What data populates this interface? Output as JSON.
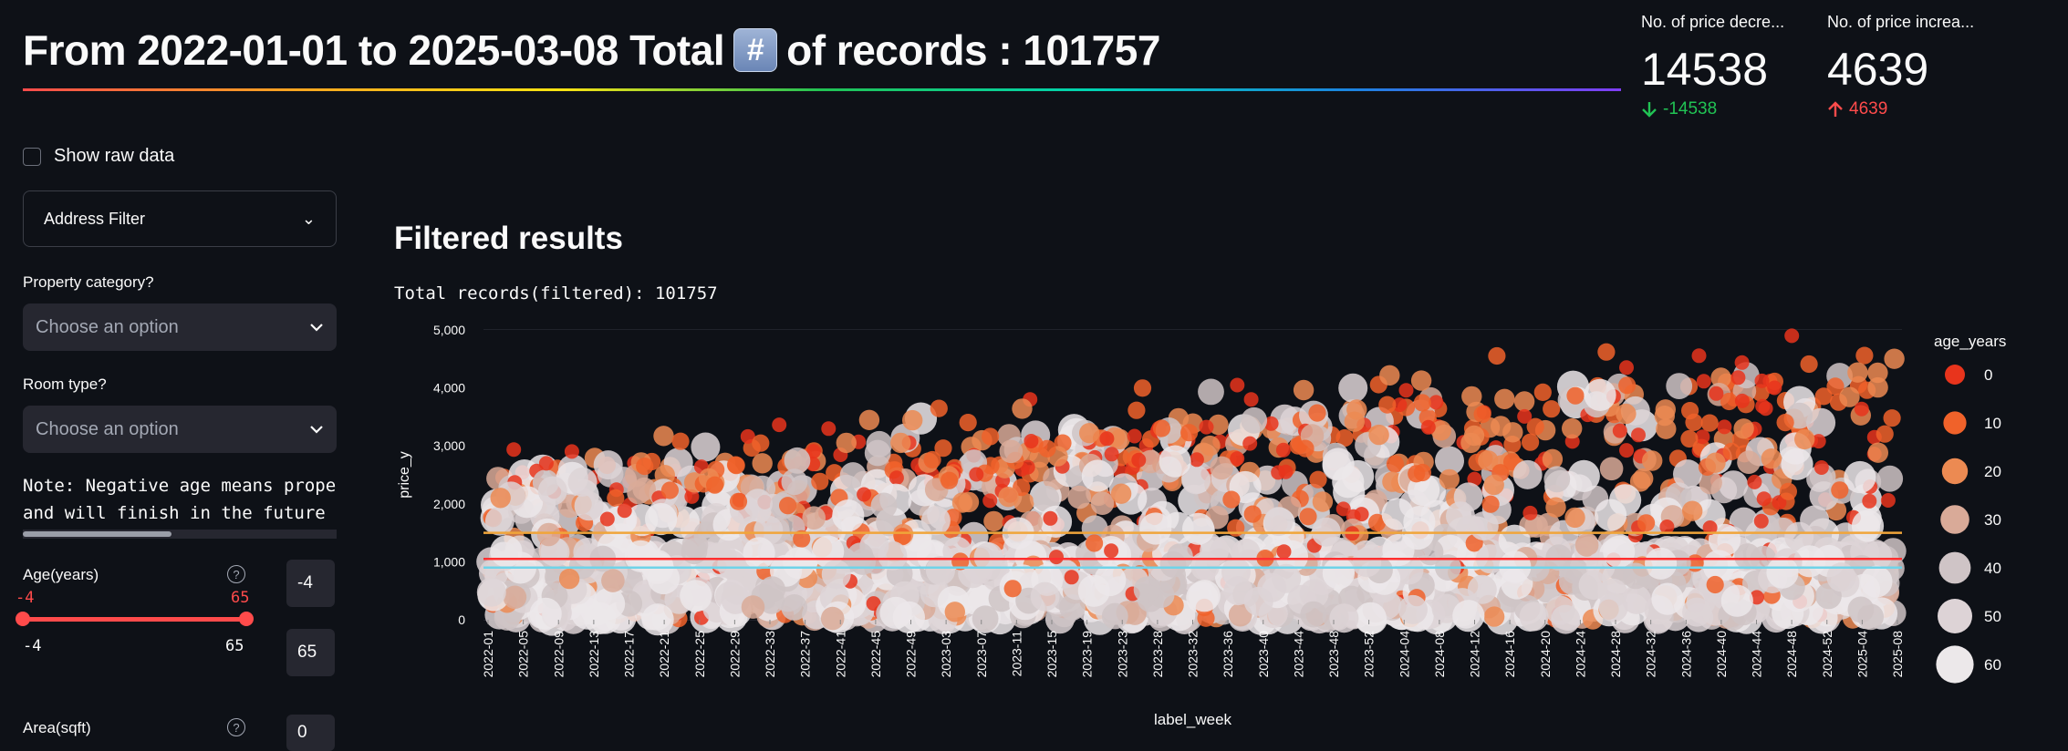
{
  "header": {
    "title_before": "From 2022-01-01 to 2025-03-08 Total",
    "title_emoji": "#",
    "title_after": "of records : 101757"
  },
  "metrics": [
    {
      "label": "No. of price decre...",
      "value": "14538",
      "delta": "-14538",
      "direction": "down",
      "color": "#21c354"
    },
    {
      "label": "No. of price increa...",
      "value": "4639",
      "delta": "4639",
      "direction": "up",
      "color": "#ff4b4b"
    }
  ],
  "sidebar": {
    "show_raw_data_label": "Show raw data",
    "address_filter_label": "Address Filter",
    "property_category_label": "Property category?",
    "property_category_placeholder": "Choose an option",
    "room_type_label": "Room type?",
    "room_type_placeholder": "Choose an option",
    "note_line1": "Note: Negative age means proper",
    "note_line2": "and will finish in the future",
    "age_label": "Age(years)",
    "age_low": "-4",
    "age_high": "65",
    "age_min": "-4",
    "age_max": "65",
    "age_input_low": "-4",
    "age_input_high": "65",
    "area_label": "Area(sqft)",
    "area_input_low": "0"
  },
  "main": {
    "section_title": "Filtered results",
    "records_text": "Total records(filtered): 101757"
  },
  "colors": {
    "accent": "#ff4b4b",
    "background": "#0e1117",
    "widget_bg": "#262730"
  },
  "chart_data": {
    "type": "scatter",
    "xlabel": "label_week",
    "ylabel": "price_y",
    "ylim": [
      0,
      5000
    ],
    "yticks": [
      "0",
      "1,000",
      "2,000",
      "3,000",
      "4,000",
      "5,000"
    ],
    "x_categories": [
      "2022-01",
      "2022-05",
      "2022-09",
      "2022-13",
      "2022-17",
      "2022-21",
      "2022-25",
      "2022-29",
      "2022-33",
      "2022-37",
      "2022-41",
      "2022-45",
      "2022-49",
      "2023-03",
      "2023-07",
      "2023-11",
      "2023-15",
      "2023-19",
      "2023-23",
      "2023-28",
      "2023-32",
      "2023-36",
      "2023-40",
      "2023-44",
      "2023-48",
      "2023-52",
      "2024-04",
      "2024-08",
      "2024-12",
      "2024-16",
      "2024-20",
      "2024-24",
      "2024-28",
      "2024-32",
      "2024-36",
      "2024-40",
      "2024-44",
      "2024-48",
      "2024-52",
      "2025-04",
      "2025-08"
    ],
    "legend_title": "age_years",
    "legend_placement": "right",
    "legend": [
      {
        "label": "0",
        "color": "#e8341c"
      },
      {
        "label": "10",
        "color": "#f0622a"
      },
      {
        "label": "20",
        "color": "#ec8a52"
      },
      {
        "label": "30",
        "color": "#d9aa98"
      },
      {
        "label": "40",
        "color": "#cfc4c6"
      },
      {
        "label": "50",
        "color": "#ddd3d6"
      },
      {
        "label": "60",
        "color": "#ece8ea"
      }
    ],
    "reference_lines": [
      {
        "y": 1500,
        "color": "#f0a53a"
      },
      {
        "y": 1050,
        "color": "#ff3030"
      },
      {
        "y": 900,
        "color": "#6fd3e8"
      }
    ]
  }
}
